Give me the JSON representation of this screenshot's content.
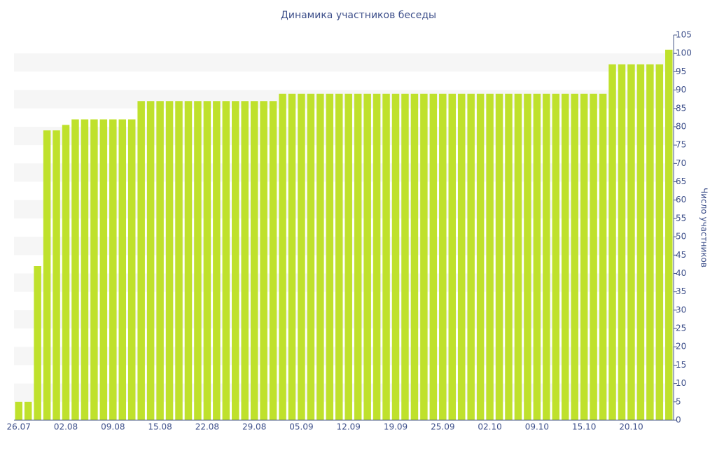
{
  "chart_data": {
    "type": "bar",
    "title": "Динамика участников беседы",
    "y_label": "Число участников",
    "categories": [
      "26.07",
      null,
      null,
      null,
      null,
      "02.08",
      null,
      null,
      null,
      null,
      "09.08",
      null,
      null,
      null,
      null,
      "15.08",
      null,
      null,
      null,
      null,
      "22.08",
      null,
      null,
      null,
      null,
      "29.08",
      null,
      null,
      null,
      null,
      "05.09",
      null,
      null,
      null,
      null,
      "12.09",
      null,
      null,
      null,
      null,
      "19.09",
      null,
      null,
      null,
      null,
      "25.09",
      null,
      null,
      null,
      null,
      "02.10",
      null,
      null,
      null,
      null,
      "09.10",
      null,
      null,
      null,
      null,
      "15.10",
      null,
      null,
      null,
      null,
      "20.10",
      null,
      null,
      null,
      null
    ],
    "values": [
      5,
      5,
      42,
      79,
      79,
      80.5,
      82,
      82,
      82,
      82,
      82,
      82,
      82,
      87,
      87,
      87,
      87,
      87,
      87,
      87,
      87,
      87,
      87,
      87,
      87,
      87,
      87,
      87,
      89,
      89,
      89,
      89,
      89,
      89,
      89,
      89,
      89,
      89,
      89,
      89,
      89,
      89,
      89,
      89,
      89,
      89,
      89,
      89,
      89,
      89,
      89,
      89,
      89,
      89,
      89,
      89,
      89,
      89,
      89,
      89,
      89,
      89,
      89,
      97,
      97,
      97,
      97,
      97,
      97,
      101
    ],
    "color": "#bfe12c",
    "ylim": [
      0,
      105
    ],
    "yticks": [
      0,
      5,
      10,
      15,
      20,
      25,
      30,
      35,
      40,
      45,
      50,
      55,
      60,
      65,
      70,
      75,
      80,
      85,
      90,
      95,
      100,
      105
    ],
    "y_axis_side": "right",
    "alternate_bands": true
  }
}
